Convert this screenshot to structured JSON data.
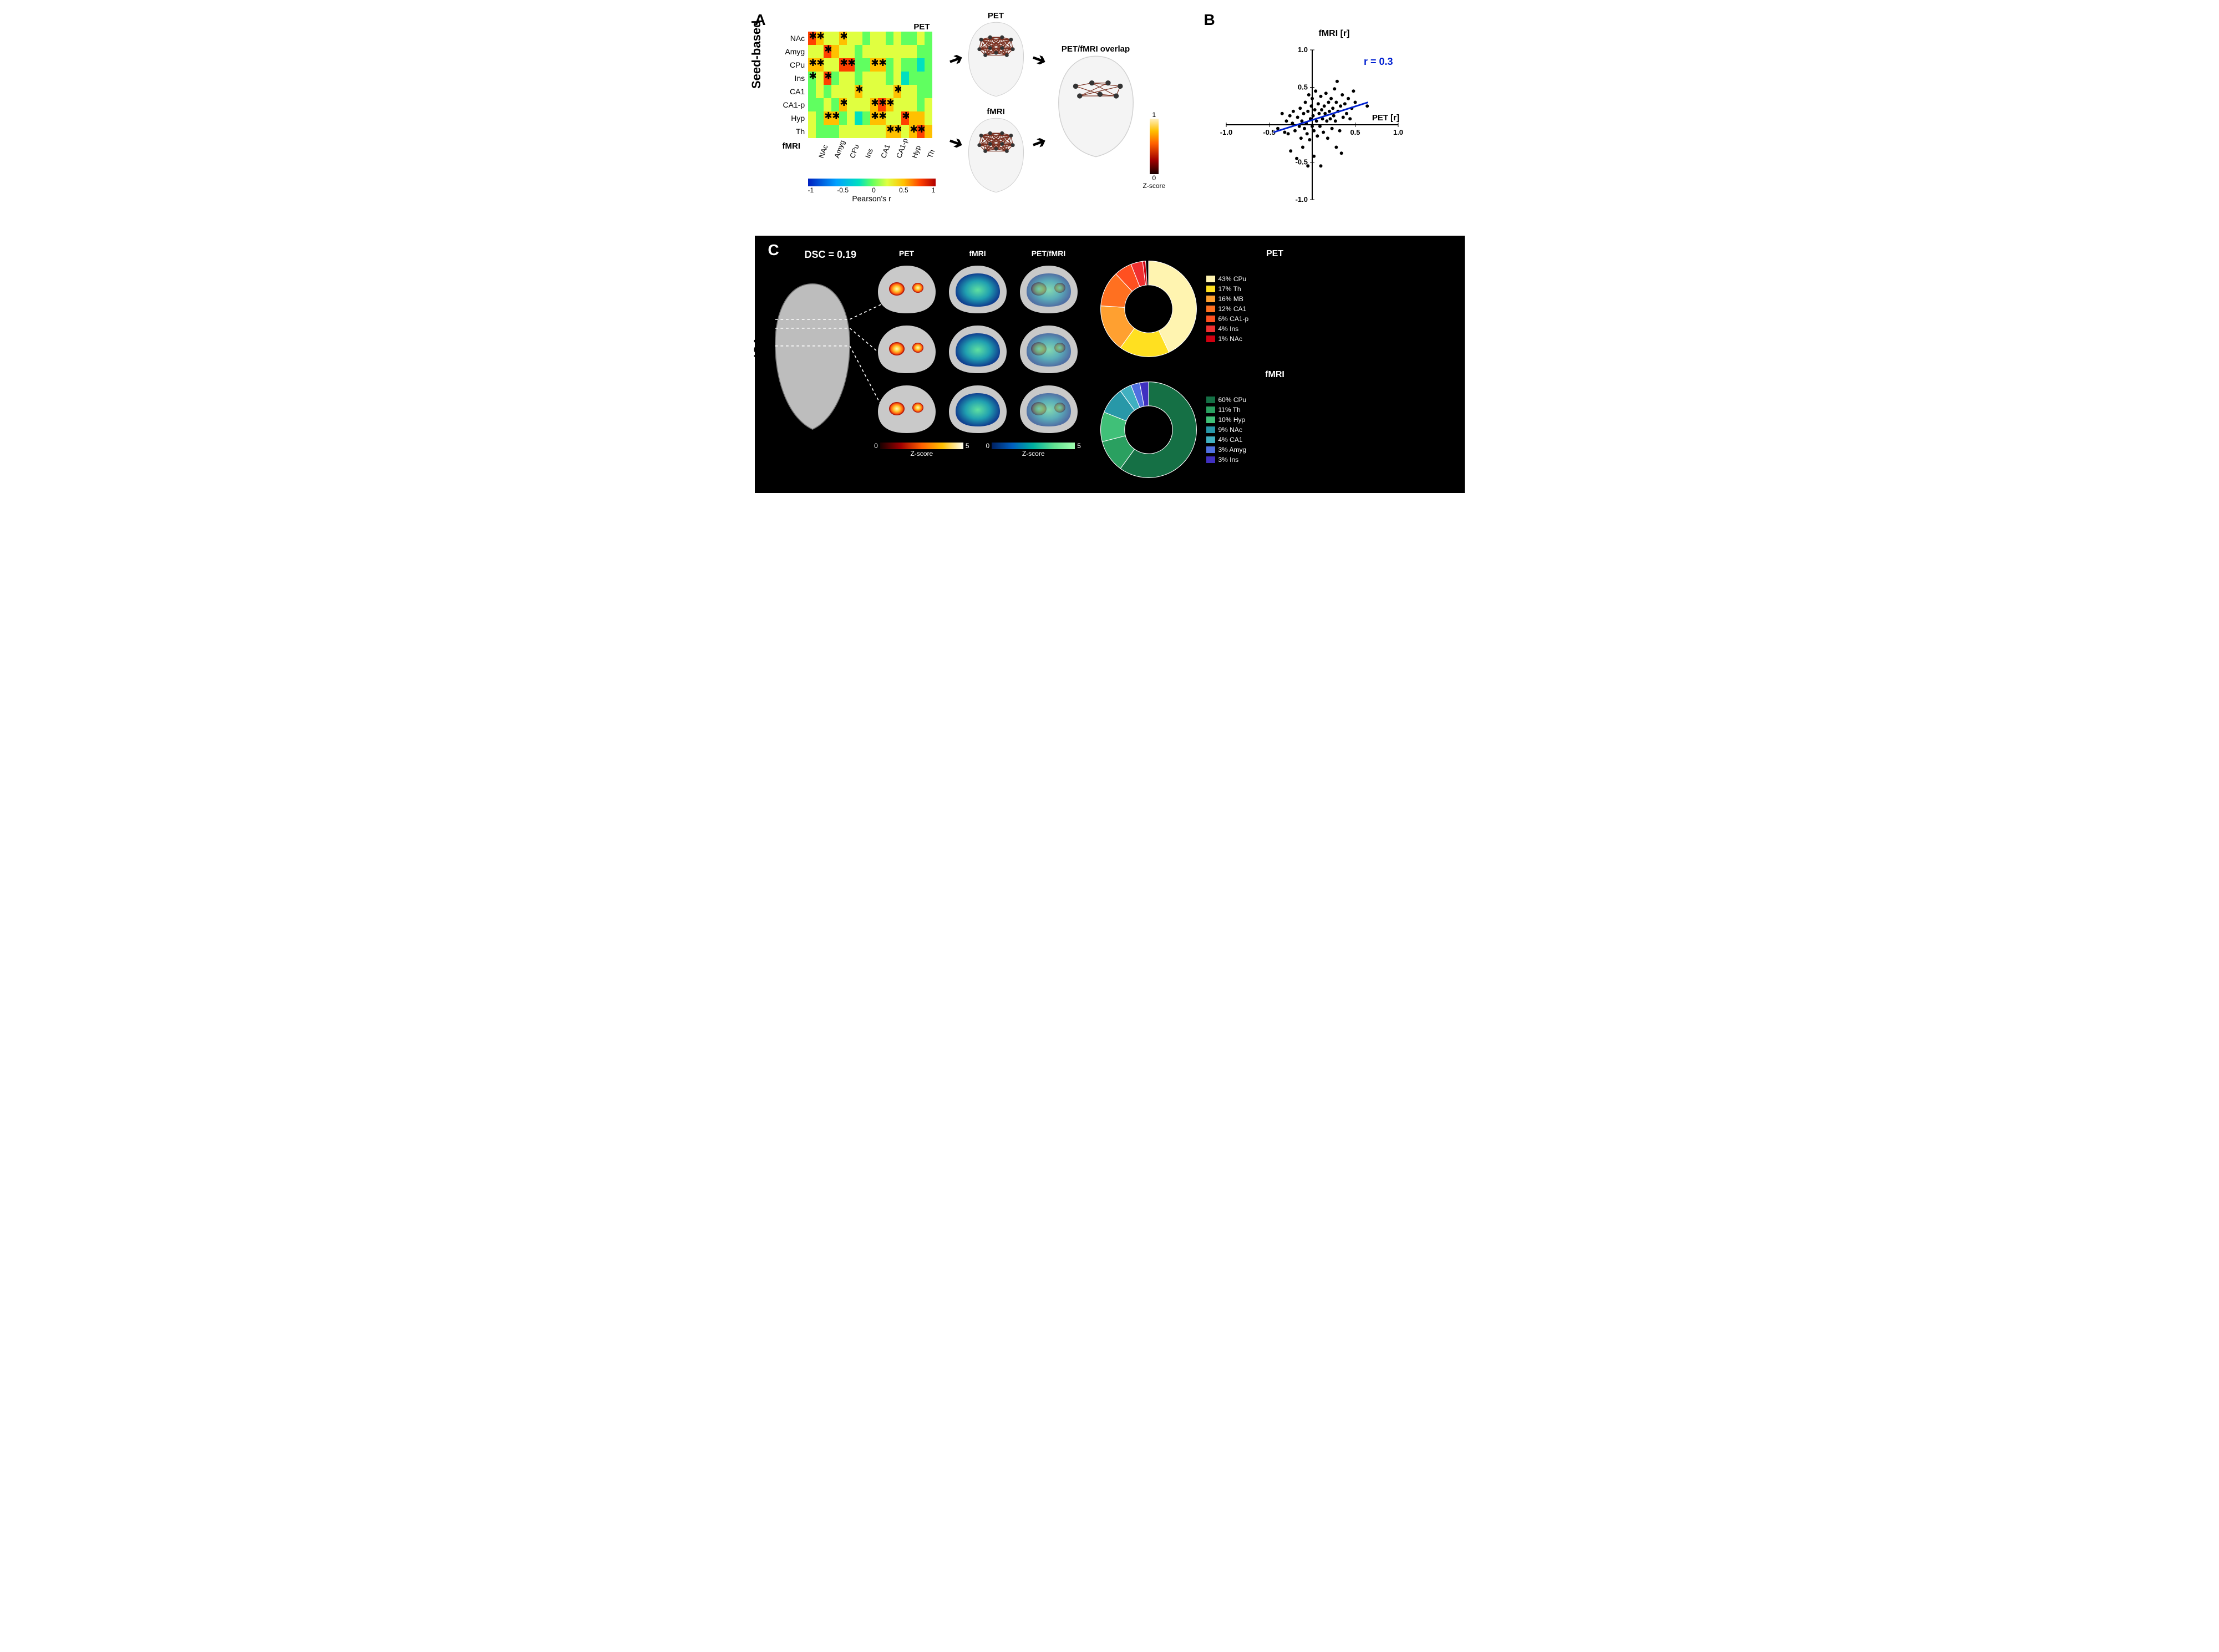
{
  "panelA": {
    "label": "A",
    "side_label": "Seed-based",
    "top_axis_label": "PET",
    "bottom_axis_label": "fMRI",
    "xlabel": "Pearson's r",
    "regions": [
      "NAc",
      "Amyg",
      "CPu",
      "Ins",
      "CA1",
      "CA1-p",
      "Hyp",
      "Th"
    ],
    "matrix": {
      "type": "heatmap",
      "nrows": 8,
      "ncols": 16,
      "xlim": [
        -1,
        1
      ],
      "colormap": [
        "#0020c0",
        "#00a0ff",
        "#00e0c0",
        "#60ff60",
        "#e0ff40",
        "#ffc000",
        "#ff4000",
        "#b00000"
      ],
      "cbar_ticks": [
        -1,
        -0.5,
        0,
        0.5,
        1
      ],
      "values": [
        [
          0.95,
          0.6,
          0.4,
          0.35,
          0.55,
          0.4,
          0.25,
          0.05,
          0.3,
          0.25,
          0.05,
          0.2,
          0.1,
          0.1,
          0.25,
          0.05
        ],
        [
          0.35,
          0.3,
          0.9,
          0.45,
          0.4,
          0.3,
          0.05,
          0.15,
          0.35,
          0.35,
          0.25,
          0.3,
          0.2,
          0.3,
          0.1,
          0.0
        ],
        [
          0.55,
          0.55,
          0.3,
          0.35,
          0.9,
          0.9,
          0.1,
          -0.1,
          0.55,
          0.5,
          0.05,
          0.25,
          0.05,
          0.1,
          -0.25,
          0.0
        ],
        [
          0.05,
          0.25,
          0.9,
          0.1,
          0.4,
          0.15,
          0.1,
          0.4,
          0.3,
          0.25,
          0.1,
          0.2,
          -0.15,
          0.05,
          0.0,
          -0.05
        ],
        [
          0.1,
          0.15,
          0.05,
          0.2,
          0.3,
          0.25,
          0.55,
          0.3,
          0.4,
          0.4,
          0.25,
          0.45,
          0.25,
          0.2,
          0.1,
          0.1
        ],
        [
          0.05,
          0.1,
          0.35,
          0.1,
          0.5,
          0.3,
          0.25,
          0.35,
          0.45,
          0.9,
          0.55,
          0.35,
          0.25,
          0.2,
          0.05,
          0.15
        ],
        [
          0.2,
          0.1,
          0.45,
          0.45,
          0.1,
          0.2,
          -0.25,
          0.1,
          0.55,
          0.45,
          0.35,
          0.4,
          0.9,
          0.5,
          0.45,
          0.2
        ],
        [
          0.15,
          0.1,
          0.1,
          0.1,
          0.35,
          0.3,
          0.2,
          0.2,
          0.25,
          0.2,
          0.5,
          0.55,
          0.3,
          0.55,
          0.9,
          0.55
        ]
      ],
      "stars": [
        [
          0,
          0
        ],
        [
          0,
          1
        ],
        [
          0,
          4
        ],
        [
          1,
          2
        ],
        [
          2,
          0
        ],
        [
          2,
          1
        ],
        [
          2,
          4
        ],
        [
          2,
          5
        ],
        [
          2,
          8
        ],
        [
          2,
          9
        ],
        [
          3,
          0
        ],
        [
          3,
          2
        ],
        [
          4,
          6
        ],
        [
          4,
          11
        ],
        [
          5,
          4
        ],
        [
          5,
          8
        ],
        [
          5,
          9
        ],
        [
          5,
          10
        ],
        [
          6,
          2
        ],
        [
          6,
          3
        ],
        [
          6,
          8
        ],
        [
          6,
          9
        ],
        [
          6,
          12
        ],
        [
          7,
          10
        ],
        [
          7,
          11
        ],
        [
          7,
          13
        ],
        [
          7,
          14
        ]
      ]
    },
    "brain_labels": {
      "pet": "PET",
      "fmri": "fMRI",
      "overlap": "PET/fMRI overlap"
    },
    "zbar": {
      "label": "Z-score",
      "range": [
        0,
        1
      ],
      "ticks": [
        0,
        1
      ]
    }
  },
  "panelB": {
    "label": "B",
    "xlabel": "PET [r]",
    "ylabel": "fMRI [r]",
    "xlim": [
      -1,
      1
    ],
    "ylim": [
      -1,
      1
    ],
    "xticks": [
      -1,
      -0.5,
      0.5,
      1
    ],
    "yticks": [
      -1,
      -0.5,
      0.5,
      1
    ],
    "annotation": "r = 0.3",
    "annotation_color": "#0020d0",
    "fit_line": {
      "x1": -0.45,
      "y1": -0.1,
      "x2": 0.65,
      "y2": 0.3,
      "color": "#0020d0",
      "width": 3
    },
    "scatter": {
      "type": "scatter",
      "marker_color": "#000000",
      "marker_size": 3,
      "points": [
        [
          -0.4,
          -0.05
        ],
        [
          -0.35,
          0.15
        ],
        [
          -0.32,
          -0.1
        ],
        [
          -0.3,
          0.05
        ],
        [
          -0.28,
          -0.12
        ],
        [
          -0.26,
          0.12
        ],
        [
          -0.25,
          -0.35
        ],
        [
          -0.23,
          0.02
        ],
        [
          -0.22,
          0.18
        ],
        [
          -0.2,
          -0.08
        ],
        [
          -0.18,
          -0.45
        ],
        [
          -0.17,
          0.1
        ],
        [
          -0.15,
          -0.02
        ],
        [
          -0.14,
          0.22
        ],
        [
          -0.13,
          -0.18
        ],
        [
          -0.12,
          0.05
        ],
        [
          -0.11,
          -0.3
        ],
        [
          -0.1,
          0.15
        ],
        [
          -0.09,
          -0.05
        ],
        [
          -0.08,
          0.3
        ],
        [
          -0.07,
          0.02
        ],
        [
          -0.06,
          -0.12
        ],
        [
          -0.05,
          0.18
        ],
        [
          -0.04,
          0.4
        ],
        [
          -0.03,
          -0.2
        ],
        [
          -0.02,
          0.08
        ],
        [
          -0.01,
          0.25
        ],
        [
          0.0,
          -0.02
        ],
        [
          0.0,
          0.35
        ],
        [
          0.01,
          0.12
        ],
        [
          0.02,
          -0.08
        ],
        [
          0.03,
          0.2
        ],
        [
          0.04,
          0.45
        ],
        [
          0.05,
          0.05
        ],
        [
          0.06,
          -0.15
        ],
        [
          0.07,
          0.28
        ],
        [
          0.08,
          0.15
        ],
        [
          0.09,
          -0.02
        ],
        [
          0.1,
          0.38
        ],
        [
          0.11,
          0.2
        ],
        [
          0.12,
          0.08
        ],
        [
          0.13,
          -0.1
        ],
        [
          0.14,
          0.25
        ],
        [
          0.15,
          0.15
        ],
        [
          0.16,
          0.42
        ],
        [
          0.17,
          0.05
        ],
        [
          0.18,
          -0.18
        ],
        [
          0.19,
          0.3
        ],
        [
          0.2,
          0.18
        ],
        [
          0.21,
          0.08
        ],
        [
          0.22,
          0.35
        ],
        [
          0.23,
          -0.05
        ],
        [
          0.24,
          0.22
        ],
        [
          0.25,
          0.12
        ],
        [
          0.26,
          0.48
        ],
        [
          0.27,
          0.05
        ],
        [
          0.28,
          0.3
        ],
        [
          0.29,
          0.58
        ],
        [
          0.3,
          0.18
        ],
        [
          0.32,
          -0.08
        ],
        [
          0.33,
          0.25
        ],
        [
          0.35,
          0.4
        ],
        [
          0.36,
          0.1
        ],
        [
          0.38,
          0.28
        ],
        [
          0.4,
          0.15
        ],
        [
          0.42,
          0.35
        ],
        [
          0.44,
          0.08
        ],
        [
          0.46,
          0.22
        ],
        [
          0.48,
          0.45
        ],
        [
          0.5,
          0.3
        ],
        [
          0.64,
          0.25
        ],
        [
          -0.05,
          -0.55
        ],
        [
          0.1,
          -0.55
        ],
        [
          0.02,
          -0.42
        ],
        [
          0.28,
          -0.3
        ],
        [
          0.34,
          -0.38
        ]
      ]
    }
  },
  "panelC": {
    "label": "C",
    "side_label": "ICA",
    "dsc_label": "DSC = 0.19",
    "column_headers": [
      "PET",
      "fMRI",
      "PET/fMRI"
    ],
    "zbar_hot": {
      "range": [
        0,
        5
      ],
      "colors": [
        "#1a0000",
        "#a00000",
        "#ff6000",
        "#ffc000",
        "#fffff0"
      ],
      "label": "Z-score"
    },
    "zbar_cool": {
      "range": [
        0,
        5
      ],
      "colors": [
        "#002060",
        "#0060c0",
        "#00b0a0",
        "#60e090",
        "#a0ffb0"
      ],
      "label": "Z-score"
    },
    "pet_donut": {
      "type": "donut",
      "title": "PET",
      "title_fontsize": 16,
      "border_color": "#ffffff",
      "slices": [
        {
          "label": "CPu",
          "pct": 43,
          "color": "#fff4b0"
        },
        {
          "label": "Th",
          "pct": 17,
          "color": "#ffe020"
        },
        {
          "label": "MB",
          "pct": 16,
          "color": "#ffa030"
        },
        {
          "label": "CA1",
          "pct": 12,
          "color": "#ff7020"
        },
        {
          "label": "CA1-p",
          "pct": 6,
          "color": "#ff5020"
        },
        {
          "label": "Ins",
          "pct": 4,
          "color": "#f03030"
        },
        {
          "label": "NAc",
          "pct": 1,
          "color": "#d00010"
        }
      ]
    },
    "fmri_donut": {
      "type": "donut",
      "title": "fMRI",
      "title_fontsize": 16,
      "border_color": "#ffffff",
      "slices": [
        {
          "label": "CPu",
          "pct": 60,
          "color": "#157045"
        },
        {
          "label": "Th",
          "pct": 11,
          "color": "#2aa060"
        },
        {
          "label": "Hyp",
          "pct": 10,
          "color": "#40c078"
        },
        {
          "label": "NAc",
          "pct": 9,
          "color": "#2898a8"
        },
        {
          "label": "CA1",
          "pct": 4,
          "color": "#40b0c0"
        },
        {
          "label": "Amyg",
          "pct": 3,
          "color": "#5070e0"
        },
        {
          "label": "Ins",
          "pct": 3,
          "color": "#4030c0"
        }
      ]
    }
  }
}
